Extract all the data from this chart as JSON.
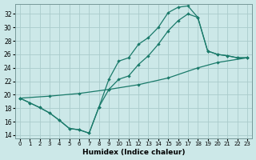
{
  "xlabel": "Humidex (Indice chaleur)",
  "xlim": [
    -0.5,
    23.5
  ],
  "ylim": [
    13.5,
    33.5
  ],
  "yticks": [
    14,
    16,
    18,
    20,
    22,
    24,
    26,
    28,
    30,
    32
  ],
  "xticks": [
    0,
    1,
    2,
    3,
    4,
    5,
    6,
    7,
    8,
    9,
    10,
    11,
    12,
    13,
    14,
    15,
    16,
    17,
    18,
    19,
    20,
    21,
    22,
    23
  ],
  "bg_color": "#cce8e8",
  "grid_color": "#aacccc",
  "line_color": "#1a7a6a",
  "line1_x": [
    0,
    1,
    2,
    3,
    4,
    5,
    6,
    7,
    8,
    9,
    10,
    11,
    12,
    13,
    14,
    15,
    16,
    17,
    18,
    19,
    20,
    21,
    22,
    23
  ],
  "line1_y": [
    19.5,
    18.8,
    18.1,
    17.3,
    16.2,
    15.0,
    14.8,
    14.3,
    18.2,
    22.3,
    25.0,
    25.5,
    27.5,
    28.5,
    30.0,
    32.2,
    33.0,
    33.2,
    31.5,
    26.5,
    26.0,
    25.8,
    25.5,
    25.5
  ],
  "line2_x": [
    0,
    1,
    2,
    3,
    4,
    5,
    6,
    7,
    8,
    9,
    10,
    11,
    12,
    13,
    14,
    15,
    16,
    17,
    18,
    19,
    20,
    21,
    22,
    23
  ],
  "line2_y": [
    19.5,
    18.8,
    18.1,
    17.3,
    16.2,
    15.0,
    14.8,
    14.3,
    18.2,
    20.8,
    22.3,
    22.8,
    24.5,
    25.8,
    27.5,
    29.5,
    31.0,
    32.0,
    31.5,
    26.5,
    26.0,
    25.8,
    25.5,
    25.5
  ],
  "line3_x": [
    0,
    3,
    6,
    9,
    12,
    15,
    18,
    20,
    23
  ],
  "line3_y": [
    19.5,
    19.8,
    20.2,
    20.8,
    21.5,
    22.5,
    24.0,
    24.8,
    25.5
  ]
}
